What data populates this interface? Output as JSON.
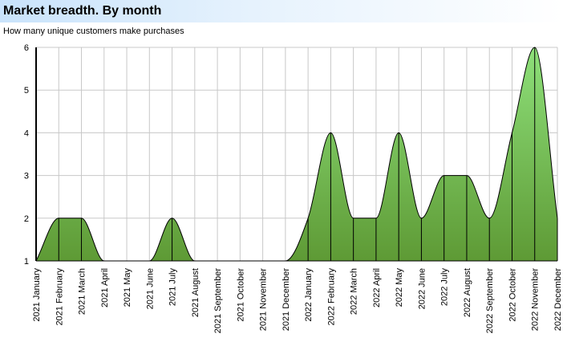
{
  "chart_data": {
    "type": "area",
    "title": "Market breadth. By month",
    "subtitle": "How many unique customers make purchases",
    "xlabel": "",
    "ylabel": "",
    "ylim": [
      1,
      6
    ],
    "yticks": [
      1,
      2,
      3,
      4,
      5,
      6
    ],
    "grid": true,
    "legend": "none",
    "categories": [
      "2021 January",
      "2021 February",
      "2021 March",
      "2021 April",
      "2021 May",
      "2021 June",
      "2021 July",
      "2021 August",
      "2021 September",
      "2021 October",
      "2021 November",
      "2021 December",
      "2022 January",
      "2022 February",
      "2022 March",
      "2022 April",
      "2022 May",
      "2022 June",
      "2022 July",
      "2022 August",
      "2022 September",
      "2022 October",
      "2022 November",
      "2022 December"
    ],
    "values": [
      1,
      2,
      2,
      1,
      1,
      1,
      2,
      1,
      1,
      1,
      1,
      1,
      2,
      4,
      2,
      2,
      4,
      2,
      3,
      3,
      2,
      4,
      6,
      2
    ],
    "colors": {
      "fill_top": "#8ee07a",
      "fill_bottom": "#5e9a35",
      "line": "#000000",
      "grid": "#c8c8c8"
    }
  }
}
